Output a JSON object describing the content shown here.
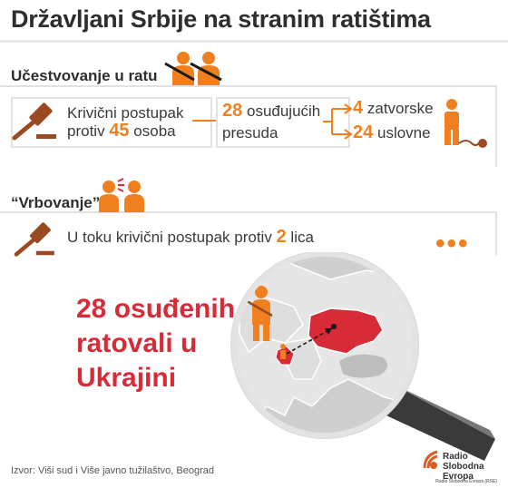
{
  "title": "Državljani Srbije na stranim ratištima",
  "section1": {
    "label": "Učestvovanje u ratu",
    "proceedings_line1": "Krivični postupak",
    "proceedings_line2_pre": "protiv",
    "proceedings_count": "45",
    "proceedings_line2_post": "osoba",
    "verdicts_count": "28",
    "verdicts_line1": "osuđujućih",
    "verdicts_line2": "presuda",
    "prison_count": "4",
    "prison_label": "zatvorske",
    "suspended_count": "24",
    "suspended_label": "uslovne"
  },
  "section2": {
    "label": "“Vrbovanje”",
    "text_pre": "U toku krivični postupak protiv",
    "count": "2",
    "text_post": "lica",
    "more": "•••"
  },
  "highlight": {
    "line1": "28 osuđenih",
    "line2": "ratovali u",
    "line3": "Ukrajini"
  },
  "source": "Izvor: Viši sud i Više javno tužilaštvo, Beograd",
  "logo": {
    "line1": "Radio Slobodna",
    "line2": "Evropa"
  },
  "credit": "Radio Slobodna Evropa (RSE)",
  "colors": {
    "accent": "#f07f20",
    "highlight_red": "#d72c38",
    "title": "#2e2e2e"
  }
}
